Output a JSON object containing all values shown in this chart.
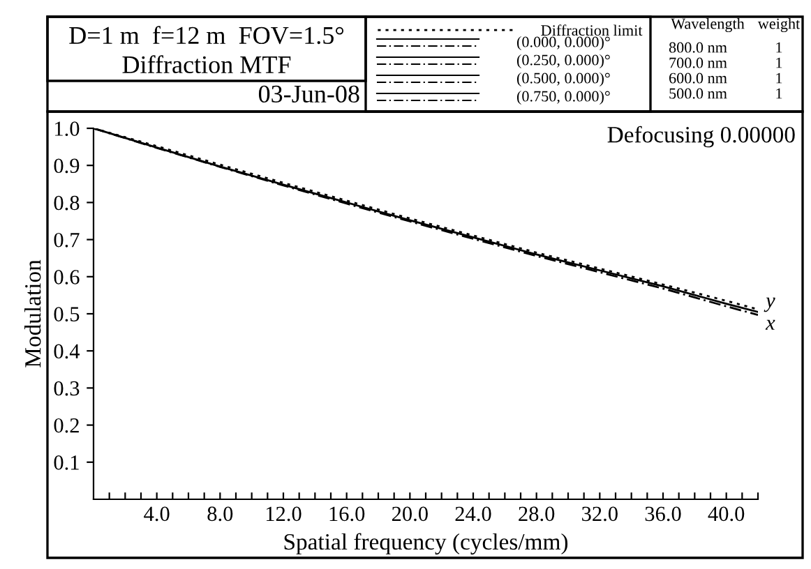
{
  "chart_data": {
    "type": "line",
    "title": "Diffraction MTF",
    "subtitle": "D=1 m  f=12 m  FOV=1.5°",
    "xlabel": "Spatial frequency (cycles/mm)",
    "ylabel": "Modulation",
    "x": [
      0,
      4,
      8,
      12,
      16,
      20,
      24,
      28,
      32,
      36,
      40,
      42
    ],
    "series": [
      {
        "name": "Diffraction limit",
        "color": "#000000",
        "line_style": "dotted",
        "values": [
          1.0,
          0.952,
          0.902,
          0.853,
          0.805,
          0.757,
          0.711,
          0.665,
          0.622,
          0.579,
          0.535,
          0.512
        ]
      },
      {
        "color": "#000000",
        "line_style": "solid",
        "values": [
          1.0,
          0.948,
          0.897,
          0.848,
          0.8,
          0.752,
          0.706,
          0.66,
          0.617,
          0.574,
          0.527,
          0.505
        ]
      },
      {
        "color": "#000000",
        "line_style": "dashed",
        "values": [
          1.0,
          0.947,
          0.896,
          0.846,
          0.797,
          0.749,
          0.702,
          0.656,
          0.612,
          0.568,
          0.52,
          0.497
        ]
      }
    ],
    "xlim": [
      0,
      42
    ],
    "ylim": [
      0,
      1.0
    ],
    "xticks": [
      {
        "value": 1,
        "label": null
      },
      {
        "value": 2,
        "label": null
      },
      {
        "value": 3,
        "label": null
      },
      {
        "value": 4,
        "label": "4.0"
      },
      {
        "value": 5,
        "label": null
      },
      {
        "value": 6,
        "label": null
      },
      {
        "value": 7,
        "label": null
      },
      {
        "value": 8,
        "label": "8.0"
      },
      {
        "value": 9,
        "label": null
      },
      {
        "value": 10,
        "label": null
      },
      {
        "value": 11,
        "label": null
      },
      {
        "value": 12,
        "label": "12.0"
      },
      {
        "value": 13,
        "label": null
      },
      {
        "value": 14,
        "label": null
      },
      {
        "value": 15,
        "label": null
      },
      {
        "value": 16,
        "label": "16.0"
      },
      {
        "value": 17,
        "label": null
      },
      {
        "value": 18,
        "label": null
      },
      {
        "value": 19,
        "label": null
      },
      {
        "value": 20,
        "label": "20.0"
      },
      {
        "value": 21,
        "label": null
      },
      {
        "value": 22,
        "label": null
      },
      {
        "value": 23,
        "label": null
      },
      {
        "value": 24,
        "label": "24.0"
      },
      {
        "value": 25,
        "label": null
      },
      {
        "value": 26,
        "label": null
      },
      {
        "value": 27,
        "label": null
      },
      {
        "value": 28,
        "label": "28.0"
      },
      {
        "value": 29,
        "label": null
      },
      {
        "value": 30,
        "label": null
      },
      {
        "value": 31,
        "label": null
      },
      {
        "value": 32,
        "label": "32.0"
      },
      {
        "value": 33,
        "label": null
      },
      {
        "value": 34,
        "label": null
      },
      {
        "value": 35,
        "label": null
      },
      {
        "value": 36,
        "label": "36.0"
      },
      {
        "value": 37,
        "label": null
      },
      {
        "value": 38,
        "label": null
      },
      {
        "value": 39,
        "label": null
      },
      {
        "value": 40,
        "label": "40.0"
      },
      {
        "value": 41,
        "label": null
      },
      {
        "value": 42,
        "label": null
      }
    ],
    "yticks": [
      0.1,
      0.2,
      0.3,
      0.4,
      0.5,
      0.6,
      0.7,
      0.8,
      0.9,
      {
        "value": 1.0,
        "label": "1.0"
      }
    ],
    "grid": false,
    "legend": "top",
    "marker": "none",
    "annotations": [
      "03-Jun-08",
      "Defocusing 0.00000",
      "Wavelength",
      "weight",
      "800.0 nm",
      "700.0 nm",
      "600.0 nm",
      "500.0 nm",
      "1",
      "1",
      "1",
      "1",
      "(0.000, 0.000)°",
      "(0.250, 0.000)°",
      "(0.500, 0.000)°",
      "(0.750, 0.000)°",
      {
        "text": "y",
        "x": 42,
        "y": 0.505
      },
      {
        "text": "x",
        "x": 42,
        "y": 0.497
      }
    ]
  }
}
